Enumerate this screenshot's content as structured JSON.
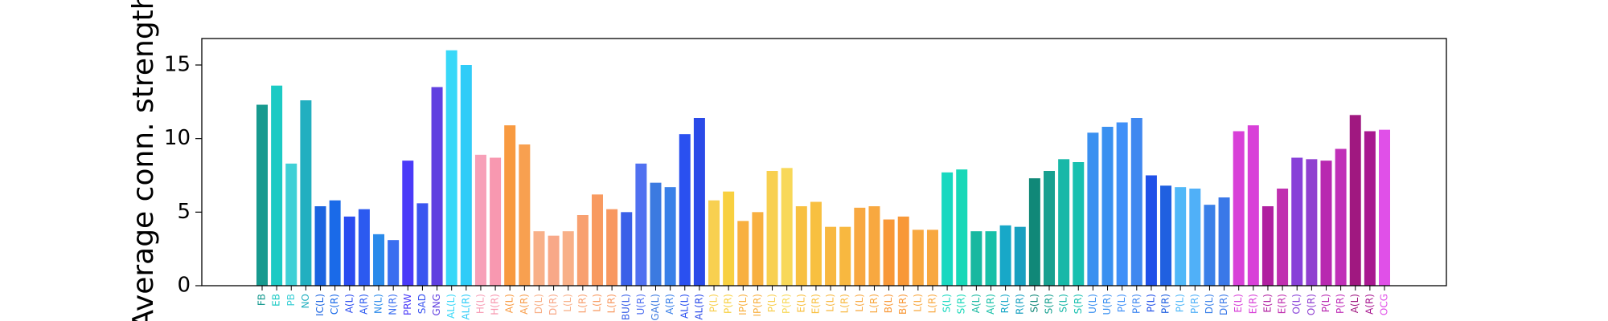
{
  "chart_data": {
    "type": "bar",
    "y_label": "Average conn. strength",
    "categories": [
      "FB",
      "EB",
      "PB",
      "NO",
      "IC(L)",
      "C(R)",
      "A(L)",
      "A(R)",
      "N(L)",
      "N(R)",
      "PRW",
      "SAD",
      "GNG",
      "AL(L)",
      "AL(R)",
      "H(L)",
      "H(R)",
      "A(L)",
      "A(R)",
      "D(L)",
      "D(R)",
      "L(L)",
      "L(R)",
      "L(L)",
      "L(R)",
      "BU(L)",
      "U(R)",
      "GA(L)",
      "A(R)",
      "AL(L)",
      "AL(R)",
      "P(L)",
      "P(R)",
      "IP(L)",
      "IP(R)",
      "P(L)",
      "P(R)",
      "E(L)",
      "E(R)",
      "L(L)",
      "L(R)",
      "L(L)",
      "L(R)",
      "B(L)",
      "B(R)",
      "L(L)",
      "L(R)",
      "S(L)",
      "S(R)",
      "A(L)",
      "A(R)",
      "R(L)",
      "R(R)",
      "S(L)",
      "S(R)",
      "S(L)",
      "S(R)",
      "U(L)",
      "U(R)",
      "P(L)",
      "P(R)",
      "P(L)",
      "P(R)",
      "P(L)",
      "P(R)",
      "D(L)",
      "D(R)",
      "E(L)",
      "E(R)",
      "E(L)",
      "E(R)",
      "O(L)",
      "O(R)",
      "P(L)",
      "P(R)",
      "A(L)",
      "A(R)",
      "OCG"
    ],
    "values": [
      12.3,
      13.6,
      8.3,
      12.6,
      5.4,
      5.8,
      4.7,
      5.2,
      3.5,
      3.1,
      8.5,
      5.6,
      13.5,
      16.0,
      15.0,
      8.9,
      8.7,
      10.9,
      9.6,
      3.7,
      3.4,
      3.7,
      4.8,
      6.2,
      5.2,
      5.0,
      8.3,
      7.0,
      6.7,
      10.3,
      11.4,
      5.8,
      6.4,
      4.4,
      5.0,
      7.8,
      8.0,
      5.4,
      5.7,
      4.0,
      4.0,
      5.3,
      5.4,
      4.5,
      4.7,
      3.8,
      3.8,
      7.7,
      7.9,
      3.7,
      3.7,
      4.1,
      4.0,
      7.3,
      7.8,
      8.6,
      8.4,
      10.4,
      10.8,
      11.1,
      11.4,
      7.5,
      6.8,
      6.7,
      6.6,
      5.5,
      6.0,
      10.5,
      10.9,
      5.4,
      6.6,
      8.7,
      8.6,
      8.5,
      9.3,
      11.6,
      10.5,
      10.6
    ],
    "colors": [
      "#179a8f",
      "#1ccac4",
      "#3fd0d6",
      "#22afc0",
      "#1a63e0",
      "#1a6ae8",
      "#2a4cf0",
      "#2c5af0",
      "#2a8aea",
      "#3a6ef0",
      "#4a3af8",
      "#3a55f0",
      "#6040e0",
      "#38d8f8",
      "#30ccf8",
      "#f7a0b8",
      "#f898b0",
      "#f89a40",
      "#f8a050",
      "#f8b088",
      "#f8a888",
      "#f8b088",
      "#f8a070",
      "#f89a60",
      "#f89860",
      "#3a60e8",
      "#5070f0",
      "#3c7ae0",
      "#3a80e8",
      "#2a50f0",
      "#2a4ae8",
      "#f8d050",
      "#f8d040",
      "#f8b040",
      "#f8b040",
      "#f8d050",
      "#f8d858",
      "#f8c040",
      "#f8c040",
      "#f8b840",
      "#f8b840",
      "#f8a840",
      "#f8a840",
      "#f89838",
      "#f89838",
      "#f8a840",
      "#f8a840",
      "#18d8c0",
      "#18d8b8",
      "#18b8a0",
      "#18c0a8",
      "#18a8c8",
      "#18a0c0",
      "#108878",
      "#18a090",
      "#18b8a8",
      "#18c0b0",
      "#3a90f0",
      "#3a90f0",
      "#4090f8",
      "#4088f0",
      "#2050e8",
      "#2060e0",
      "#50b8f8",
      "#50b0f8",
      "#3a80e8",
      "#3a78e8",
      "#d840d8",
      "#d840d8",
      "#b020a0",
      "#c030b0",
      "#8840d8",
      "#9040d0",
      "#b828b0",
      "#c030b8",
      "#a01880",
      "#a81890",
      "#e050e8"
    ],
    "ylim": [
      0,
      16.8
    ],
    "yticks": [
      0,
      5,
      10,
      15
    ]
  }
}
